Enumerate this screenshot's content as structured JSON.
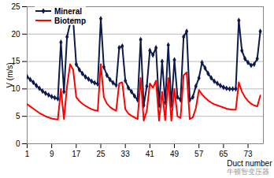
{
  "chart_data": {
    "type": "line",
    "x_label": "Duct number",
    "y_label": "V (m/s)",
    "annotations": [
      "牛顿智变压器"
    ],
    "x": [
      1,
      2,
      3,
      4,
      5,
      6,
      7,
      8,
      9,
      10,
      11,
      12,
      13,
      14,
      15,
      16,
      17,
      18,
      19,
      20,
      21,
      22,
      23,
      24,
      25,
      26,
      27,
      28,
      29,
      30,
      31,
      32,
      33,
      34,
      35,
      36,
      37,
      38,
      39,
      40,
      41,
      42,
      43,
      44,
      45,
      46,
      47,
      48,
      49,
      50,
      51,
      52,
      53,
      54,
      55,
      56,
      57,
      58,
      59,
      60,
      61,
      62,
      63,
      64,
      65,
      66,
      67,
      68,
      69,
      70,
      71,
      72,
      73,
      74,
      75,
      76,
      77
    ],
    "series": [
      {
        "name": "Mineral",
        "color": "#0d1a4a",
        "marker": "diamond",
        "values": [
          12.2,
          11.7,
          11.2,
          10.6,
          10.1,
          9.6,
          9.2,
          8.9,
          8.6,
          8.4,
          8.2,
          18.5,
          9.5,
          19.5,
          22,
          22.6,
          14.5,
          13.5,
          12.8,
          12.2,
          11.8,
          11.4,
          11.1,
          10.9,
          22.8,
          14,
          12.5,
          11.7,
          11.1,
          10.7,
          17.5,
          17.8,
          11.5,
          10.2,
          9.5,
          8.7,
          8,
          19,
          7,
          10.5,
          17,
          16.2,
          17.5,
          7,
          15,
          7.5,
          18,
          7,
          15.3,
          8.5,
          8,
          19.5,
          20.5,
          8,
          8.5,
          10.5,
          12,
          14.8,
          13.8,
          12.8,
          12,
          11.4,
          11,
          10.6,
          10.3,
          10.1,
          10,
          10,
          10,
          22.5,
          17,
          15.5,
          14.8,
          14.3,
          14.5,
          15.5,
          20.5
        ]
      },
      {
        "name": "Biotemp",
        "color": "#ff0000",
        "marker": "none",
        "values": [
          7.2,
          6.8,
          6.4,
          6,
          5.6,
          5.3,
          5,
          4.8,
          4.6,
          4.5,
          4.4,
          10,
          4.5,
          10.5,
          14.5,
          13.5,
          8.5,
          7.8,
          7.3,
          6.9,
          6.6,
          6.3,
          6.1,
          6,
          14.5,
          8.5,
          7.3,
          6.7,
          6.3,
          6,
          11,
          11.2,
          6.3,
          5.5,
          5.1,
          4.8,
          4.5,
          12,
          4.2,
          6,
          11,
          10.2,
          11.5,
          4.2,
          9.5,
          4.3,
          12,
          4.2,
          10,
          5,
          4.7,
          12.5,
          13,
          4.5,
          4.8,
          6.5,
          9.8,
          9,
          8.4,
          7.9,
          7.5,
          7.2,
          7,
          6.8,
          6.6,
          6.4,
          6.3,
          6.2,
          6.2,
          11.2,
          9.5,
          8.5,
          7.8,
          7.3,
          7,
          6.8,
          8.8
        ]
      }
    ],
    "xlim": [
      1,
      78
    ],
    "xticks": [
      1,
      9,
      17,
      25,
      33,
      41,
      49,
      57,
      65,
      73
    ],
    "ylim": [
      0,
      25
    ],
    "yticks": [
      0,
      5,
      10,
      15,
      20,
      25
    ],
    "grid": true,
    "legend": "top-left"
  }
}
